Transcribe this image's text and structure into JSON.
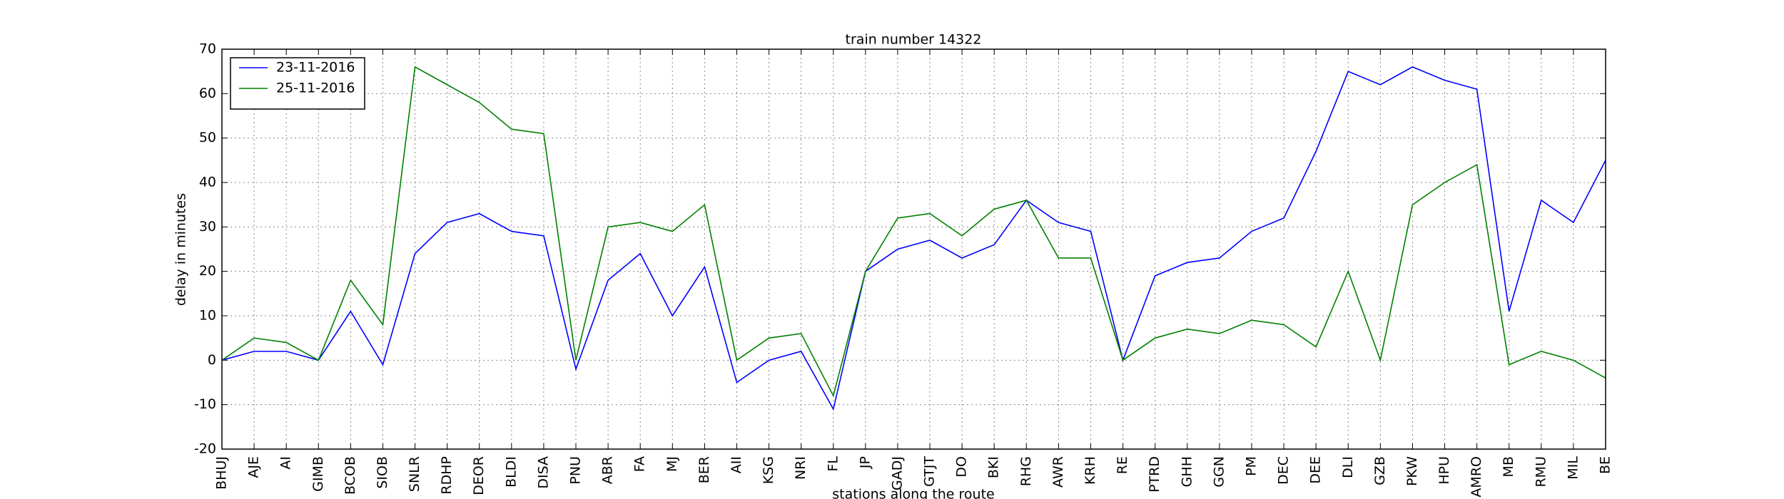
{
  "chart_data": {
    "type": "line",
    "title": "train number 14322",
    "xlabel": "stations along the route",
    "ylabel": "delay in minutes",
    "categories": [
      "BHUJ",
      "AJE",
      "AI",
      "GIMB",
      "BCOB",
      "SIOB",
      "SNLR",
      "RDHP",
      "DEOR",
      "BLDI",
      "DISA",
      "PNU",
      "ABR",
      "FA",
      "MJ",
      "BER",
      "AII",
      "KSG",
      "NRI",
      "FL",
      "JP",
      "GADJ",
      "GTJT",
      "DO",
      "BKI",
      "RHG",
      "AWR",
      "KRH",
      "RE",
      "PTRD",
      "GHH",
      "GGN",
      "PM",
      "DEC",
      "DEE",
      "DLI",
      "GZB",
      "PKW",
      "HPU",
      "AMRO",
      "MB",
      "RMU",
      "MIL",
      "BE"
    ],
    "series": [
      {
        "name": "23-11-2016",
        "color": "#0000ff",
        "values": [
          0,
          2,
          2,
          0,
          11,
          -1,
          24,
          31,
          33,
          29,
          28,
          -2,
          18,
          24,
          10,
          21,
          -5,
          0,
          2,
          -11,
          20,
          25,
          27,
          23,
          26,
          36,
          31,
          29,
          0,
          19,
          22,
          23,
          29,
          32,
          47,
          65,
          62,
          66,
          63,
          61,
          11,
          36,
          31,
          45
        ]
      },
      {
        "name": "25-11-2016",
        "color": "#008000",
        "values": [
          0,
          5,
          4,
          0,
          18,
          8,
          66,
          62,
          58,
          52,
          51,
          0,
          30,
          31,
          29,
          35,
          0,
          5,
          6,
          -8,
          20,
          32,
          33,
          28,
          34,
          36,
          23,
          23,
          0,
          5,
          7,
          6,
          9,
          8,
          3,
          20,
          0,
          35,
          40,
          44,
          -1,
          2,
          0,
          -4
        ]
      }
    ],
    "ylim": [
      -20,
      70
    ],
    "yticks": [
      -20,
      -10,
      0,
      10,
      20,
      30,
      40,
      50,
      60,
      70
    ],
    "grid": true,
    "legend": "upper left"
  }
}
